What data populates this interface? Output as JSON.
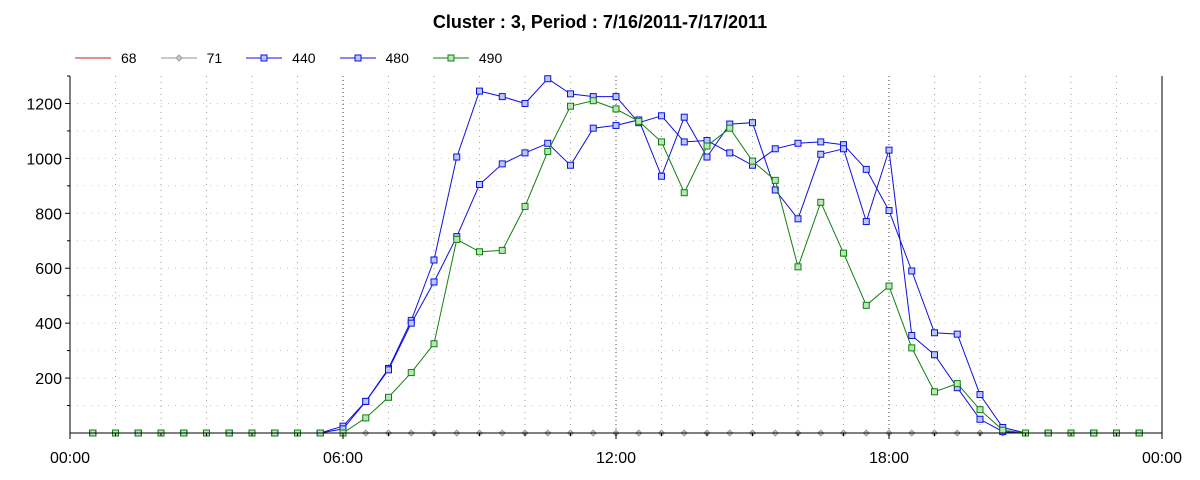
{
  "chart_data": {
    "type": "line",
    "title": "Cluster : 3, Period : 7/16/2011-7/17/2011",
    "xlabel": "",
    "ylabel": "",
    "x_tick_labels": [
      "00:00",
      "06:00",
      "12:00",
      "18:00",
      "00:00"
    ],
    "y_tick_labels": [
      "200",
      "400",
      "600",
      "800",
      "1000",
      "1200"
    ],
    "ylim": [
      0,
      1300
    ],
    "xlim_hours": [
      0,
      24
    ],
    "legend_position": "top-left",
    "grid": "dotted vertical and horizontal",
    "x": [
      "00:30",
      "01:00",
      "01:30",
      "02:00",
      "02:30",
      "03:00",
      "03:30",
      "04:00",
      "04:30",
      "05:00",
      "05:30",
      "06:00",
      "06:30",
      "07:00",
      "07:30",
      "08:00",
      "08:30",
      "09:00",
      "09:30",
      "10:00",
      "10:30",
      "11:00",
      "11:30",
      "12:00",
      "12:30",
      "13:00",
      "13:30",
      "14:00",
      "14:30",
      "15:00",
      "15:30",
      "16:00",
      "16:30",
      "17:00",
      "17:30",
      "18:00",
      "18:30",
      "19:00",
      "19:30",
      "20:00",
      "20:30",
      "21:00",
      "21:30",
      "22:00",
      "22:30",
      "23:00",
      "23:30"
    ],
    "series": [
      {
        "name": "68",
        "color": "#c02020",
        "marker": "none",
        "values": [
          0,
          0,
          0,
          0,
          0,
          0,
          0,
          0,
          0,
          0,
          0,
          0,
          0,
          0,
          0,
          0,
          0,
          0,
          0,
          0,
          0,
          0,
          0,
          0,
          0,
          0,
          0,
          0,
          0,
          0,
          0,
          0,
          0,
          0,
          0,
          0,
          0,
          0,
          0,
          0,
          0,
          0,
          0,
          0,
          0,
          0,
          0
        ]
      },
      {
        "name": "71",
        "color": "#909090",
        "marker": "diamond",
        "values": [
          0,
          0,
          0,
          0,
          0,
          0,
          0,
          0,
          0,
          0,
          0,
          0,
          0,
          0,
          0,
          0,
          0,
          0,
          0,
          0,
          0,
          0,
          0,
          0,
          0,
          0,
          0,
          0,
          0,
          0,
          0,
          0,
          0,
          0,
          0,
          0,
          0,
          0,
          0,
          0,
          0,
          0,
          0,
          0,
          0,
          0,
          0
        ]
      },
      {
        "name": "440",
        "color": "#1010e0",
        "marker": "square",
        "values": [
          0,
          0,
          0,
          0,
          0,
          0,
          0,
          0,
          0,
          0,
          0,
          25,
          115,
          235,
          410,
          630,
          1005,
          1245,
          1225,
          1200,
          1290,
          1235,
          1225,
          1225,
          1130,
          1155,
          1060,
          1065,
          1020,
          975,
          1035,
          1055,
          1060,
          1050,
          960,
          810,
          590,
          365,
          360,
          140,
          20,
          0,
          0,
          0,
          0,
          0,
          0
        ]
      },
      {
        "name": "480",
        "color": "#1010e0",
        "marker": "square",
        "values": [
          0,
          0,
          0,
          0,
          0,
          0,
          0,
          0,
          0,
          0,
          0,
          15,
          115,
          230,
          400,
          550,
          715,
          905,
          980,
          1020,
          1055,
          975,
          1110,
          1120,
          1140,
          935,
          1150,
          1005,
          1125,
          1130,
          885,
          780,
          1015,
          1035,
          770,
          1030,
          355,
          285,
          165,
          50,
          5,
          0,
          0,
          0,
          0,
          0,
          0
        ]
      },
      {
        "name": "490",
        "color": "#108010",
        "marker": "square",
        "values": [
          0,
          0,
          0,
          0,
          0,
          0,
          0,
          0,
          0,
          0,
          0,
          0,
          55,
          130,
          220,
          325,
          705,
          660,
          665,
          825,
          1025,
          1190,
          1210,
          1180,
          1135,
          1060,
          875,
          1045,
          1110,
          990,
          920,
          605,
          840,
          655,
          465,
          535,
          310,
          150,
          180,
          85,
          10,
          0,
          0,
          0,
          0,
          0,
          0
        ]
      }
    ]
  }
}
